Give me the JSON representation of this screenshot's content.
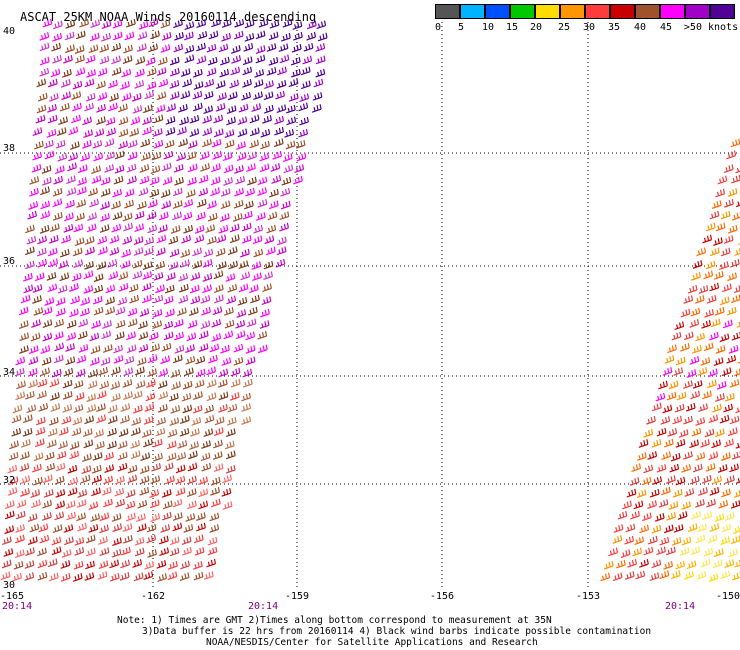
{
  "title": "ASCAT 25KM NOAA Winds 20160114 descending",
  "legend": {
    "colors": [
      "#555555",
      "#00b4ff",
      "#0050ff",
      "#00c800",
      "#ffdc00",
      "#ff9600",
      "#ff3c3c",
      "#c80000",
      "#a0522d",
      "#ff00ff",
      "#a000c8",
      "#500096"
    ],
    "labels": [
      "0",
      "5",
      "10",
      "15",
      "20",
      "25",
      "30",
      "35",
      "40",
      "45",
      ">50 knots"
    ]
  },
  "axes": {
    "lat_labels": [
      "40",
      "38",
      "36",
      "34",
      "32",
      "30"
    ],
    "lon_labels": [
      "-165",
      "-162",
      "-159",
      "-156",
      "-153",
      "-150"
    ],
    "time_labels": [
      "20:14",
      "20:14",
      "20:14"
    ]
  },
  "notes": {
    "line1": "Note: 1) Times are GMT 2)Times along bottom correspond to measurement at 35N",
    "line2": "3)Data buffer is 22 hrs from 20160114 4) Black wind barbs indicate possible contamination",
    "line3": "NOAA/NESDIS/Center for Satellite Applications and Research"
  }
}
